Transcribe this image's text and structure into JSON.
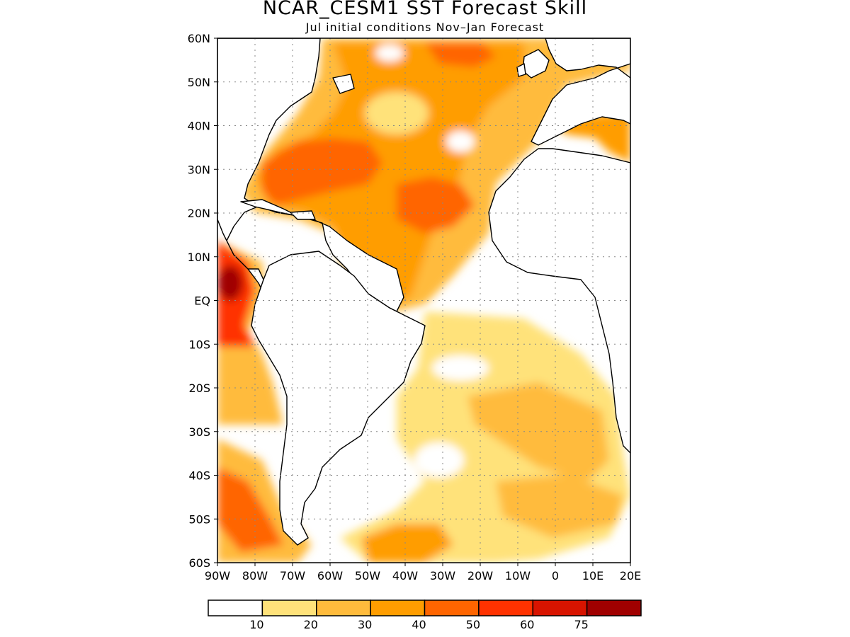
{
  "title": "NCAR_CESM1  SST Forecast Skill",
  "subtitle": "Jul initial conditions   Nov–Jan Forecast",
  "map": {
    "lon_range": [
      -90,
      20
    ],
    "lat_range": [
      -60,
      60
    ],
    "gridlines": "dotted",
    "lat_ticks": [
      {
        "lat": 60,
        "label": "60N"
      },
      {
        "lat": 50,
        "label": "50N"
      },
      {
        "lat": 40,
        "label": "40N"
      },
      {
        "lat": 30,
        "label": "30N"
      },
      {
        "lat": 20,
        "label": "20N"
      },
      {
        "lat": 10,
        "label": "10N"
      },
      {
        "lat": 0,
        "label": "EQ"
      },
      {
        "lat": -10,
        "label": "10S"
      },
      {
        "lat": -20,
        "label": "20S"
      },
      {
        "lat": -30,
        "label": "30S"
      },
      {
        "lat": -40,
        "label": "40S"
      },
      {
        "lat": -50,
        "label": "50S"
      },
      {
        "lat": -60,
        "label": "60S"
      }
    ],
    "lon_ticks": [
      {
        "lon": -90,
        "label": "90W"
      },
      {
        "lon": -80,
        "label": "80W"
      },
      {
        "lon": -70,
        "label": "70W"
      },
      {
        "lon": -60,
        "label": "60W"
      },
      {
        "lon": -50,
        "label": "50W"
      },
      {
        "lon": -40,
        "label": "40W"
      },
      {
        "lon": -30,
        "label": "30W"
      },
      {
        "lon": -20,
        "label": "20W"
      },
      {
        "lon": -10,
        "label": "10W"
      },
      {
        "lon": 0,
        "label": "0"
      },
      {
        "lon": 10,
        "label": "10E"
      },
      {
        "lon": 20,
        "label": "20E"
      }
    ]
  },
  "colorbar": {
    "colors": [
      "#ffffff",
      "#ffe27a",
      "#ffbb3c",
      "#ff9d00",
      "#ff6500",
      "#ff3200",
      "#d81400",
      "#a00000"
    ],
    "labels": [
      "10",
      "20",
      "30",
      "40",
      "50",
      "60",
      "75"
    ]
  }
}
